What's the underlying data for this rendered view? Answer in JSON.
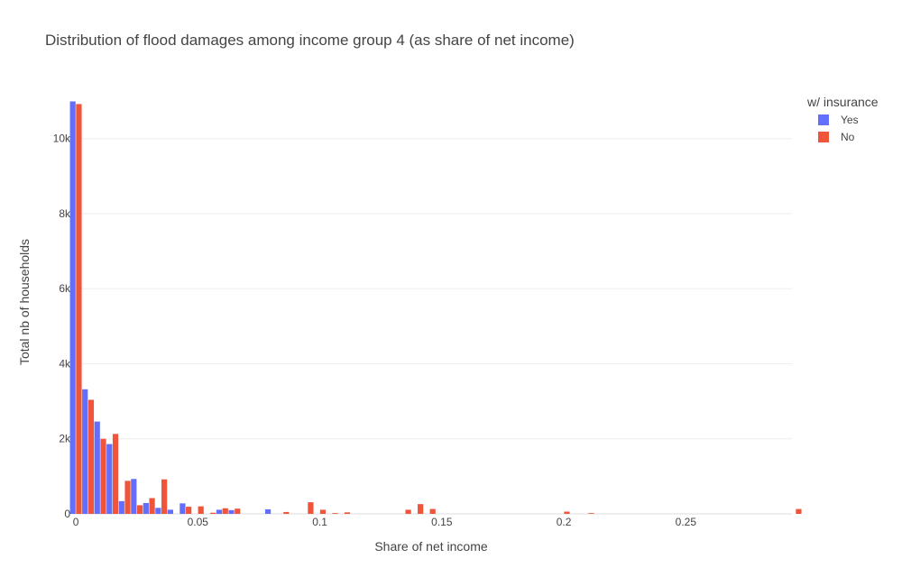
{
  "chart_data": {
    "type": "bar",
    "barmode": "group",
    "title": "Distribution of flood damages among income group 4 (as share of net income)",
    "xlabel": "Share of net income",
    "ylabel": "Total nb of households",
    "xlim": [
      -0.0015,
      0.2935
    ],
    "ylim": [
      0,
      11050
    ],
    "bin_width": 0.005,
    "x_ticks": [
      {
        "value": 0,
        "label": "0"
      },
      {
        "value": 0.05,
        "label": "0.05"
      },
      {
        "value": 0.1,
        "label": "0.1"
      },
      {
        "value": 0.15,
        "label": "0.15"
      },
      {
        "value": 0.2,
        "label": "0.2"
      },
      {
        "value": 0.25,
        "label": "0.25"
      }
    ],
    "y_ticks": [
      {
        "value": 0,
        "label": "0"
      },
      {
        "value": 2000,
        "label": "2k"
      },
      {
        "value": 4000,
        "label": "4k"
      },
      {
        "value": 6000,
        "label": "6k"
      },
      {
        "value": 8000,
        "label": "8k"
      },
      {
        "value": 10000,
        "label": "10k"
      }
    ],
    "legend": {
      "title": "w/ insurance",
      "position": "top-right"
    },
    "grid": true,
    "series": [
      {
        "name": "Yes",
        "color": "#636efa",
        "x": [
          0.0,
          0.005,
          0.01,
          0.015,
          0.02,
          0.025,
          0.03,
          0.035,
          0.04,
          0.045,
          0.06,
          0.065,
          0.08
        ],
        "values": [
          10990,
          3320,
          2460,
          1860,
          340,
          930,
          290,
          160,
          110,
          280,
          110,
          100,
          120
        ]
      },
      {
        "name": "No",
        "color": "#ef553b",
        "x": [
          0.0,
          0.005,
          0.01,
          0.015,
          0.02,
          0.025,
          0.03,
          0.035,
          0.045,
          0.05,
          0.055,
          0.06,
          0.065,
          0.085,
          0.095,
          0.1,
          0.105,
          0.11,
          0.135,
          0.14,
          0.145,
          0.2,
          0.21,
          0.295
        ],
        "values": [
          10920,
          3040,
          2000,
          2130,
          880,
          230,
          420,
          920,
          190,
          200,
          30,
          150,
          140,
          50,
          310,
          110,
          20,
          40,
          110,
          260,
          130,
          60,
          20,
          130
        ]
      }
    ]
  }
}
